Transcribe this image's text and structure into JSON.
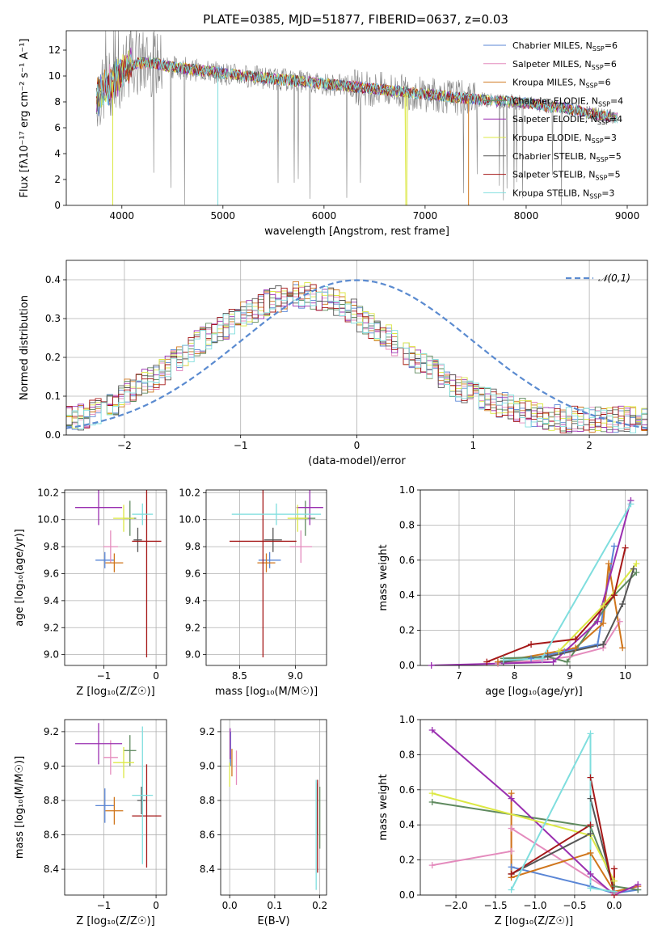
{
  "figure_title": "PLATE=0385, MJD=51877, FIBERID=0637, z=0.03",
  "models": [
    {
      "name": "Chabrier MILES",
      "nssp": "6",
      "color": "#5a86d6"
    },
    {
      "name": "Salpeter MILES",
      "nssp": "6",
      "color": "#e48bbd"
    },
    {
      "name": "Kroupa MILES",
      "nssp": "6",
      "color": "#d0761c"
    },
    {
      "name": "Chabrier ELODIE",
      "nssp": "4",
      "color": "#5f8a5f"
    },
    {
      "name": "Salpeter ELODIE",
      "nssp": "4",
      "color": "#9a2fb0"
    },
    {
      "name": "Kroupa ELODIE",
      "nssp": "3",
      "color": "#dce844"
    },
    {
      "name": "Chabrier STELIB",
      "nssp": "5",
      "color": "#555555"
    },
    {
      "name": "Salpeter STELIB",
      "nssp": "5",
      "color": "#a51818"
    },
    {
      "name": "Kroupa STELIB",
      "nssp": "3",
      "color": "#7fdede"
    }
  ],
  "chart_data": [
    {
      "id": "spectrum",
      "type": "line",
      "xlabel": "wavelength [Angstrom, rest frame]",
      "ylabel": "Flux [fλ10⁻¹⁷ erg cm⁻² s⁻¹ A⁻¹]",
      "xlim": [
        3450,
        9200
      ],
      "ylim": [
        0,
        13.5
      ],
      "xticks": [
        4000,
        5000,
        6000,
        7000,
        8000,
        9000
      ],
      "yticks": [
        0,
        2,
        4,
        6,
        8,
        10,
        12
      ],
      "grid": false,
      "legend": "top-right",
      "data_color": "#808080",
      "x_range": [
        3750,
        8900
      ],
      "continuum": {
        "x": [
          3750,
          3850,
          3950,
          4050,
          4150,
          4300,
          4500,
          4800,
          5100,
          5500,
          6000,
          6500,
          7000,
          7500,
          8000,
          8400,
          8700,
          8900
        ],
        "y": [
          8.2,
          9.2,
          9.8,
          10.6,
          11.0,
          11.0,
          10.7,
          10.4,
          10.1,
          9.8,
          9.4,
          9.0,
          8.6,
          8.2,
          7.9,
          7.5,
          7.0,
          6.8
        ]
      }
    },
    {
      "id": "residuals",
      "type": "histogram",
      "xlabel": "(data-model)/error",
      "ylabel": "Normed distribution",
      "xlim": [
        -2.5,
        2.5
      ],
      "ylim": [
        0,
        0.45
      ],
      "xticks": [
        -2,
        -1,
        0,
        1,
        2
      ],
      "yticks": [
        0.0,
        0.1,
        0.2,
        0.3,
        0.4
      ],
      "grid": true,
      "legend": "top-right",
      "reference": {
        "name": "𝒩(0,1)",
        "color": "#5b8bd0",
        "style": "dashed"
      },
      "bin_width": 0.1,
      "base": [
        0.04,
        0.04,
        0.045,
        0.05,
        0.055,
        0.06,
        0.065,
        0.075,
        0.085,
        0.1,
        0.11,
        0.12,
        0.13,
        0.135,
        0.14,
        0.15,
        0.16,
        0.175,
        0.19,
        0.2,
        0.21,
        0.22,
        0.235,
        0.245,
        0.255,
        0.26,
        0.27,
        0.28,
        0.29,
        0.3,
        0.31,
        0.315,
        0.325,
        0.33,
        0.34,
        0.345,
        0.35,
        0.35,
        0.36,
        0.36,
        0.355,
        0.36,
        0.355,
        0.35,
        0.35,
        0.345,
        0.34,
        0.335,
        0.325,
        0.32,
        0.3,
        0.29,
        0.28,
        0.27,
        0.26,
        0.25,
        0.235,
        0.225,
        0.215,
        0.2,
        0.19,
        0.18,
        0.17,
        0.16,
        0.15,
        0.14,
        0.13,
        0.12,
        0.115,
        0.11,
        0.1,
        0.095,
        0.09,
        0.085,
        0.08,
        0.075,
        0.07,
        0.065,
        0.06,
        0.055,
        0.05,
        0.05,
        0.045,
        0.045,
        0.045,
        0.04,
        0.04,
        0.04,
        0.04,
        0.04,
        0.04,
        0.04,
        0.04,
        0.04,
        0.04,
        0.04,
        0.04,
        0.04,
        0.04,
        0.04
      ]
    },
    {
      "id": "age-vs-Z",
      "type": "errorbar",
      "xlabel": "Z [log₁₀(Z/Z☉)]",
      "ylabel": "age  [log₁₀(age/yr)]",
      "xlim": [
        -1.75,
        0.2
      ],
      "ylim": [
        8.92,
        10.22
      ],
      "xticks": [
        -1,
        0
      ],
      "yticks": [
        9.0,
        9.2,
        9.4,
        9.6,
        9.8,
        10.0,
        10.2
      ],
      "grid": true,
      "points": [
        {
          "m": 0,
          "x": -0.98,
          "y": 9.7,
          "xerr": 0.18,
          "yerr": 0.06
        },
        {
          "m": 1,
          "x": -0.87,
          "y": 9.8,
          "xerr": 0.14,
          "yerr": 0.12
        },
        {
          "m": 2,
          "x": -0.8,
          "y": 9.68,
          "xerr": 0.17,
          "yerr": 0.07
        },
        {
          "m": 3,
          "x": -0.5,
          "y": 10.01,
          "xerr": 0.12,
          "yerr": 0.13
        },
        {
          "m": 4,
          "x": -1.1,
          "y": 10.09,
          "xerr": 0.45,
          "yerr": 0.13
        },
        {
          "m": 5,
          "x": -0.62,
          "y": 10.01,
          "xerr": 0.2,
          "yerr": 0.1
        },
        {
          "m": 6,
          "x": -0.35,
          "y": 9.85,
          "xerr": 0.08,
          "yerr": 0.09
        },
        {
          "m": 7,
          "x": -0.18,
          "y": 9.84,
          "xerr": 0.28,
          "yerr": 0.86
        },
        {
          "m": 8,
          "x": -0.26,
          "y": 10.04,
          "xerr": 0.2,
          "yerr": 0.08
        }
      ]
    },
    {
      "id": "age-vs-mass",
      "type": "errorbar",
      "xlabel": "mass [log₁₀(M/M☉)]",
      "ylabel": "",
      "xlim": [
        8.2,
        9.28
      ],
      "ylim": [
        8.92,
        10.22
      ],
      "xticks": [
        8.5,
        9.0
      ],
      "yticks": [
        9.0,
        9.2,
        9.4,
        9.6,
        9.8,
        10.0,
        10.2
      ],
      "grid": true,
      "points": [
        {
          "m": 0,
          "x": 8.77,
          "y": 9.7,
          "xerr": 0.1,
          "yerr": 0.06
        },
        {
          "m": 1,
          "x": 9.05,
          "y": 9.8,
          "xerr": 0.1,
          "yerr": 0.12
        },
        {
          "m": 2,
          "x": 8.74,
          "y": 9.68,
          "xerr": 0.08,
          "yerr": 0.07
        },
        {
          "m": 3,
          "x": 9.09,
          "y": 10.01,
          "xerr": 0.09,
          "yerr": 0.13
        },
        {
          "m": 4,
          "x": 9.13,
          "y": 10.09,
          "xerr": 0.12,
          "yerr": 0.13
        },
        {
          "m": 5,
          "x": 9.02,
          "y": 10.01,
          "xerr": 0.09,
          "yerr": 0.1
        },
        {
          "m": 6,
          "x": 8.8,
          "y": 9.85,
          "xerr": 0.08,
          "yerr": 0.09
        },
        {
          "m": 7,
          "x": 8.71,
          "y": 9.84,
          "xerr": 0.3,
          "yerr": 0.86
        },
        {
          "m": 8,
          "x": 8.83,
          "y": 10.04,
          "xerr": 0.4,
          "yerr": 0.08
        }
      ]
    },
    {
      "id": "mass-weight-vs-age",
      "type": "line",
      "xlabel": "age  [log₁₀(age/yr)]",
      "ylabel": "mass weight",
      "xlim": [
        6.3,
        10.4
      ],
      "ylim": [
        0,
        1
      ],
      "xticks": [
        7,
        8,
        9,
        10
      ],
      "yticks": [
        0.0,
        0.2,
        0.4,
        0.6,
        0.8,
        1.0
      ],
      "grid": true,
      "series": [
        {
          "m": 0,
          "x": [
            7.7,
            8.3,
            8.9,
            9.5,
            9.8
          ],
          "y": [
            0.02,
            0.04,
            0.08,
            0.12,
            0.68
          ]
        },
        {
          "m": 1,
          "x": [
            7.7,
            8.5,
            9.0,
            9.6,
            9.9
          ],
          "y": [
            0.01,
            0.03,
            0.05,
            0.1,
            0.25
          ]
        },
        {
          "m": 2,
          "x": [
            7.7,
            8.6,
            9.1,
            9.6,
            9.7,
            9.95
          ],
          "y": [
            0.02,
            0.07,
            0.1,
            0.24,
            0.58,
            0.1
          ]
        },
        {
          "m": 3,
          "x": [
            7.8,
            8.6,
            8.95,
            9.8,
            10.2
          ],
          "y": [
            0.04,
            0.05,
            0.02,
            0.4,
            0.53
          ]
        },
        {
          "m": 4,
          "x": [
            6.5,
            8.7,
            9.5,
            10.1
          ],
          "y": [
            0.0,
            0.02,
            0.25,
            0.94
          ]
        },
        {
          "m": 5,
          "x": [
            8.8,
            9.6,
            10.2
          ],
          "y": [
            0.08,
            0.34,
            0.58
          ]
        },
        {
          "m": 6,
          "x": [
            7.8,
            8.6,
            9.6,
            9.95,
            10.15
          ],
          "y": [
            0.02,
            0.05,
            0.12,
            0.35,
            0.55
          ]
        },
        {
          "m": 7,
          "x": [
            7.5,
            8.3,
            9.1,
            9.8,
            10.0
          ],
          "y": [
            0.02,
            0.12,
            0.15,
            0.4,
            0.67
          ]
        },
        {
          "m": 8,
          "x": [
            7.8,
            8.5,
            10.1
          ],
          "y": [
            0.03,
            0.04,
            0.92
          ]
        }
      ]
    },
    {
      "id": "mass-vs-Z",
      "type": "errorbar",
      "xlabel": "Z [log₁₀(Z/Z☉)]",
      "ylabel": "mass [log₁₀(M/M☉)]",
      "xlim": [
        -1.75,
        0.2
      ],
      "ylim": [
        8.25,
        9.27
      ],
      "xticks": [
        -1,
        0
      ],
      "yticks": [
        8.4,
        8.6,
        8.8,
        9.0,
        9.2
      ],
      "grid": true,
      "points": [
        {
          "m": 0,
          "x": -0.98,
          "y": 8.77,
          "xerr": 0.18,
          "yerr": 0.1
        },
        {
          "m": 1,
          "x": -0.87,
          "y": 9.05,
          "xerr": 0.14,
          "yerr": 0.1
        },
        {
          "m": 2,
          "x": -0.8,
          "y": 8.74,
          "xerr": 0.17,
          "yerr": 0.08
        },
        {
          "m": 3,
          "x": -0.5,
          "y": 9.09,
          "xerr": 0.12,
          "yerr": 0.09
        },
        {
          "m": 4,
          "x": -1.1,
          "y": 9.13,
          "xerr": 0.45,
          "yerr": 0.12
        },
        {
          "m": 5,
          "x": -0.62,
          "y": 9.02,
          "xerr": 0.2,
          "yerr": 0.09
        },
        {
          "m": 6,
          "x": -0.28,
          "y": 8.8,
          "xerr": 0.08,
          "yerr": 0.08
        },
        {
          "m": 7,
          "x": -0.18,
          "y": 8.71,
          "xerr": 0.28,
          "yerr": 0.3
        },
        {
          "m": 8,
          "x": -0.26,
          "y": 8.83,
          "xerr": 0.2,
          "yerr": 0.4
        }
      ]
    },
    {
      "id": "mass-vs-ebv",
      "type": "errorbar",
      "xlabel": "E(B-V)",
      "ylabel": "",
      "xlim": [
        -0.02,
        0.215
      ],
      "ylim": [
        8.25,
        9.27
      ],
      "xticks": [
        0.0,
        0.1,
        0.2
      ],
      "yticks": [
        8.4,
        8.6,
        8.8,
        9.0,
        9.2
      ],
      "grid": true,
      "points": [
        {
          "m": 0,
          "x": 0.002,
          "y": 9.1,
          "xerr": 0,
          "yerr": 0.1
        },
        {
          "m": 1,
          "x": 0.015,
          "y": 8.99,
          "xerr": 0,
          "yerr": 0.1
        },
        {
          "m": 2,
          "x": 0.005,
          "y": 9.02,
          "xerr": 0,
          "yerr": 0.08
        },
        {
          "m": 3,
          "x": 0.2,
          "y": 8.7,
          "xerr": 0,
          "yerr": 0.18
        },
        {
          "m": 4,
          "x": 0.001,
          "y": 9.13,
          "xerr": 0,
          "yerr": 0.09
        },
        {
          "m": 5,
          "x": 0.0,
          "y": 8.95,
          "xerr": 0,
          "yerr": 0.07
        },
        {
          "m": 6,
          "x": 0.195,
          "y": 8.75,
          "xerr": 0,
          "yerr": 0.15
        },
        {
          "m": 7,
          "x": 0.195,
          "y": 8.65,
          "xerr": 0,
          "yerr": 0.27
        },
        {
          "m": 8,
          "x": 0.192,
          "y": 8.6,
          "xerr": 0,
          "yerr": 0.32
        }
      ]
    },
    {
      "id": "mass-weight-vs-Z",
      "type": "line",
      "xlabel": "Z [log₁₀(Z/Z☉)]",
      "ylabel": "mass weight",
      "xlim": [
        -2.45,
        0.42
      ],
      "ylim": [
        0,
        1
      ],
      "xticks": [
        -2.0,
        -1.5,
        -1.0,
        -0.5,
        0.0
      ],
      "yticks": [
        0.0,
        0.2,
        0.4,
        0.6,
        0.8,
        1.0
      ],
      "grid": true,
      "series": [
        {
          "m": 0,
          "x": [
            -1.3,
            -0.3,
            0.0,
            0.3
          ],
          "y": [
            0.16,
            0.05,
            0.01,
            0.03
          ]
        },
        {
          "m": 1,
          "x": [
            -2.3,
            -1.3,
            -1.3,
            0.0,
            0.3
          ],
          "y": [
            0.17,
            0.25,
            0.38,
            0.01,
            0.05
          ]
        },
        {
          "m": 2,
          "x": [
            -1.3,
            -1.3,
            -0.3,
            0.0,
            0.3
          ],
          "y": [
            0.58,
            0.1,
            0.24,
            0.02,
            0.05
          ]
        },
        {
          "m": 3,
          "x": [
            -2.3,
            -0.3,
            0.0,
            0.3
          ],
          "y": [
            0.53,
            0.39,
            0.05,
            0.03
          ]
        },
        {
          "m": 4,
          "x": [
            -2.3,
            -1.3,
            -0.3,
            0.0,
            0.3
          ],
          "y": [
            0.94,
            0.55,
            0.12,
            0.0,
            0.06
          ]
        },
        {
          "m": 5,
          "x": [
            -2.3,
            -0.3,
            0.0
          ],
          "y": [
            0.58,
            0.34,
            0.08
          ]
        },
        {
          "m": 6,
          "x": [
            -1.3,
            -0.3,
            -0.3,
            0.0
          ],
          "y": [
            0.12,
            0.35,
            0.55,
            0.02
          ]
        },
        {
          "m": 7,
          "x": [
            -1.3,
            -0.3,
            -0.3,
            0.0,
            0.0
          ],
          "y": [
            0.12,
            0.4,
            0.67,
            0.0,
            0.15
          ]
        },
        {
          "m": 8,
          "x": [
            -1.3,
            -0.3,
            -0.3,
            0.0
          ],
          "y": [
            0.03,
            0.92,
            0.04,
            0.02
          ]
        }
      ]
    }
  ]
}
